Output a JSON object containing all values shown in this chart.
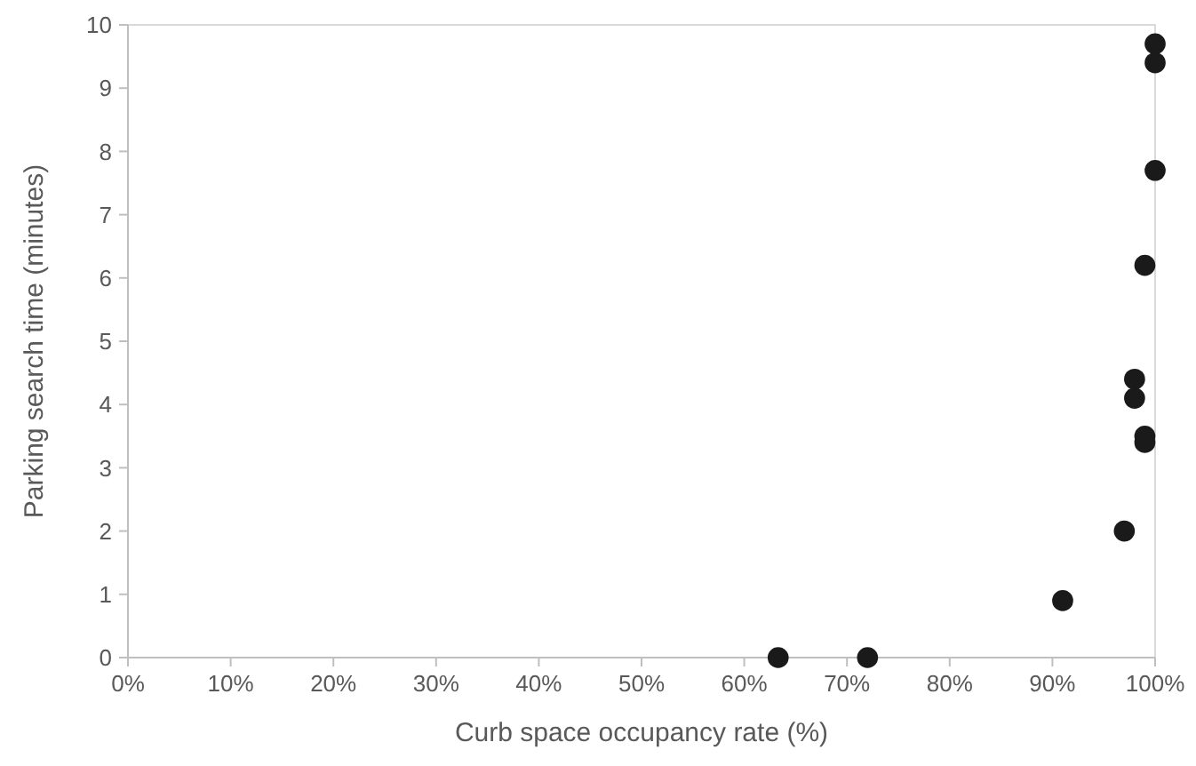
{
  "chart_data": {
    "type": "scatter",
    "xlabel": "Curb space occupancy rate (%)",
    "ylabel": "Parking search time (minutes)",
    "x": [
      63.3,
      72,
      91,
      97,
      98,
      98,
      99,
      99,
      99,
      100,
      100,
      100
    ],
    "values": [
      0,
      0,
      0.9,
      2,
      4.4,
      4.1,
      3.5,
      3.4,
      6.2,
      7.7,
      9.4,
      9.7
    ],
    "color": "#1a1a1a",
    "marker": "circle",
    "grid": false,
    "xlim": [
      0,
      100
    ],
    "xticks": [
      {
        "value": 0,
        "label": "0%"
      },
      {
        "value": 10,
        "label": "10%"
      },
      {
        "value": 20,
        "label": "20%"
      },
      {
        "value": 30,
        "label": "30%"
      },
      {
        "value": 40,
        "label": "40%"
      },
      {
        "value": 50,
        "label": "50%"
      },
      {
        "value": 60,
        "label": "60%"
      },
      {
        "value": 70,
        "label": "70%"
      },
      {
        "value": 80,
        "label": "80%"
      },
      {
        "value": 90,
        "label": "90%"
      },
      {
        "value": 100,
        "label": "100%"
      }
    ],
    "ylim": [
      0,
      10
    ],
    "yticks": [
      0,
      1,
      2,
      3,
      4,
      5,
      6,
      7,
      8,
      9,
      10
    ]
  }
}
